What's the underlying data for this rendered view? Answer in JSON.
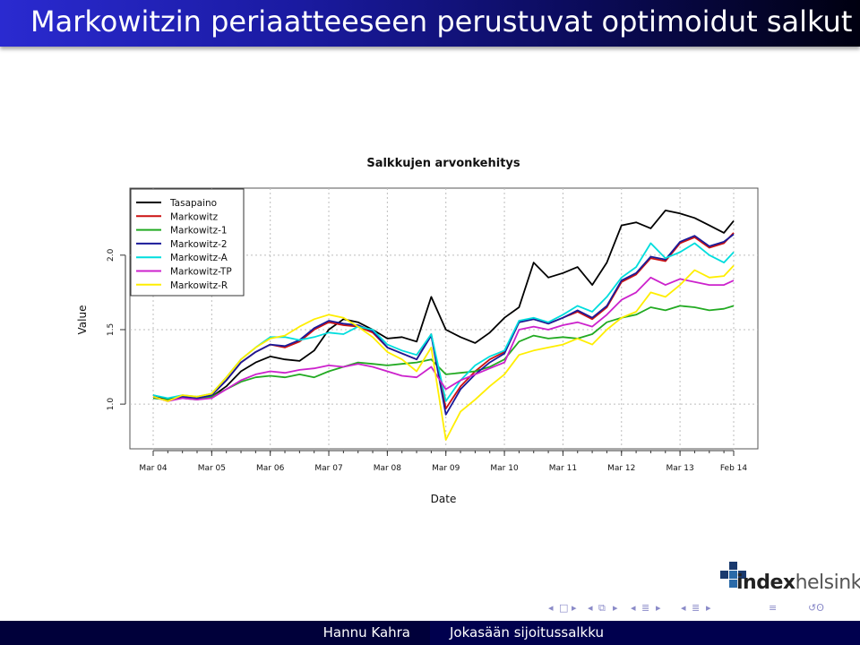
{
  "slide": {
    "title": "Markowitzin periaatteeseen perustuvat optimoidut salkut"
  },
  "footer": {
    "author": "Hannu Kahra",
    "talk_title": "Jokasään sijoitussalkku"
  },
  "logo": {
    "brand_bold": "index",
    "brand_rest": "helsinki"
  },
  "nav": {
    "icons": [
      "nav-left-arrow-icon",
      "frame-icon",
      "nav-right-arrow-icon",
      "nav-left-arrow-icon",
      "subsection-icon",
      "nav-right-arrow-icon",
      "nav-left-arrow-icon",
      "section-icon",
      "nav-right-arrow-icon",
      "nav-left-arrow-icon",
      "presentation-icon",
      "nav-right-arrow-icon",
      "align-icon",
      "search-icon"
    ]
  },
  "chart_data": {
    "type": "line",
    "title": "Salkkujen arvonkehitys",
    "xlabel": "Date",
    "ylabel": "Value",
    "x_tick_labels": [
      "Mar 04",
      "Mar 05",
      "Mar 06",
      "Mar 07",
      "Mar 08",
      "Mar 09",
      "Mar 10",
      "Mar 11",
      "Mar 12",
      "Mar 13",
      "Feb 14"
    ],
    "y_tick_labels": [
      "1.0",
      "1.5",
      "2.0"
    ],
    "x": [
      "2004-03",
      "2004-06",
      "2004-09",
      "2004-12",
      "2005-03",
      "2005-06",
      "2005-09",
      "2005-12",
      "2006-03",
      "2006-06",
      "2006-09",
      "2006-12",
      "2007-03",
      "2007-06",
      "2007-09",
      "2007-12",
      "2008-03",
      "2008-06",
      "2008-09",
      "2008-12",
      "2009-03",
      "2009-06",
      "2009-09",
      "2009-12",
      "2010-03",
      "2010-06",
      "2010-09",
      "2010-12",
      "2011-03",
      "2011-06",
      "2011-09",
      "2011-12",
      "2012-03",
      "2012-06",
      "2012-09",
      "2012-12",
      "2013-03",
      "2013-06",
      "2013-09",
      "2013-12",
      "2014-02"
    ],
    "xlim": [
      "2004-03",
      "2014-02"
    ],
    "ylim": [
      0.7,
      2.45
    ],
    "grid": true,
    "legend_position": "top-left",
    "series": [
      {
        "name": "Tasapaino",
        "color": "#000000",
        "values": [
          1.06,
          1.03,
          1.05,
          1.04,
          1.05,
          1.12,
          1.22,
          1.28,
          1.32,
          1.3,
          1.29,
          1.36,
          1.5,
          1.57,
          1.55,
          1.5,
          1.44,
          1.45,
          1.42,
          1.72,
          1.5,
          1.45,
          1.41,
          1.48,
          1.58,
          1.65,
          1.95,
          1.85,
          1.88,
          1.92,
          1.8,
          1.95,
          2.2,
          2.22,
          2.18,
          2.3,
          2.28,
          2.25,
          2.2,
          2.15,
          2.23
        ]
      },
      {
        "name": "Markowitz",
        "color": "#cc1111",
        "values": [
          1.05,
          1.02,
          1.05,
          1.04,
          1.06,
          1.16,
          1.28,
          1.35,
          1.4,
          1.38,
          1.42,
          1.5,
          1.55,
          1.53,
          1.52,
          1.48,
          1.38,
          1.34,
          1.3,
          1.47,
          0.97,
          1.12,
          1.22,
          1.3,
          1.35,
          1.55,
          1.57,
          1.54,
          1.58,
          1.62,
          1.57,
          1.65,
          1.82,
          1.87,
          1.98,
          1.96,
          2.08,
          2.12,
          2.05,
          2.08,
          2.15
        ]
      },
      {
        "name": "Markowitz-1",
        "color": "#22aa22",
        "values": [
          1.04,
          1.03,
          1.04,
          1.03,
          1.05,
          1.1,
          1.15,
          1.18,
          1.19,
          1.18,
          1.2,
          1.18,
          1.22,
          1.25,
          1.28,
          1.27,
          1.26,
          1.27,
          1.28,
          1.3,
          1.2,
          1.21,
          1.22,
          1.25,
          1.3,
          1.42,
          1.46,
          1.44,
          1.45,
          1.44,
          1.47,
          1.55,
          1.58,
          1.6,
          1.65,
          1.63,
          1.66,
          1.65,
          1.63,
          1.64,
          1.66
        ]
      },
      {
        "name": "Markowitz-2",
        "color": "#1a1a99",
        "values": [
          1.05,
          1.02,
          1.05,
          1.04,
          1.06,
          1.16,
          1.28,
          1.35,
          1.4,
          1.39,
          1.43,
          1.51,
          1.56,
          1.54,
          1.53,
          1.49,
          1.38,
          1.34,
          1.3,
          1.46,
          0.93,
          1.1,
          1.2,
          1.28,
          1.34,
          1.55,
          1.57,
          1.54,
          1.58,
          1.63,
          1.58,
          1.66,
          1.83,
          1.88,
          1.99,
          1.97,
          2.09,
          2.13,
          2.06,
          2.09,
          2.14
        ]
      },
      {
        "name": "Markowitz-A",
        "color": "#00dddd",
        "values": [
          1.06,
          1.04,
          1.06,
          1.05,
          1.07,
          1.18,
          1.3,
          1.38,
          1.45,
          1.45,
          1.43,
          1.45,
          1.48,
          1.47,
          1.52,
          1.5,
          1.4,
          1.36,
          1.33,
          1.47,
          1.02,
          1.16,
          1.26,
          1.32,
          1.36,
          1.56,
          1.58,
          1.55,
          1.6,
          1.66,
          1.62,
          1.72,
          1.85,
          1.92,
          2.08,
          1.98,
          2.02,
          2.08,
          2.0,
          1.95,
          2.02
        ]
      },
      {
        "name": "Markowitz-TP",
        "color": "#cc22cc",
        "values": [
          1.05,
          1.02,
          1.04,
          1.03,
          1.04,
          1.1,
          1.16,
          1.2,
          1.22,
          1.21,
          1.23,
          1.24,
          1.26,
          1.25,
          1.27,
          1.25,
          1.22,
          1.19,
          1.18,
          1.25,
          1.1,
          1.16,
          1.2,
          1.24,
          1.28,
          1.5,
          1.52,
          1.5,
          1.53,
          1.55,
          1.52,
          1.6,
          1.7,
          1.75,
          1.85,
          1.8,
          1.84,
          1.82,
          1.8,
          1.8,
          1.83
        ]
      },
      {
        "name": "Markowitz-R",
        "color": "#ffee00",
        "values": [
          1.05,
          1.02,
          1.06,
          1.05,
          1.07,
          1.18,
          1.3,
          1.38,
          1.44,
          1.46,
          1.52,
          1.57,
          1.6,
          1.58,
          1.52,
          1.45,
          1.35,
          1.3,
          1.22,
          1.38,
          0.76,
          0.95,
          1.03,
          1.12,
          1.2,
          1.33,
          1.36,
          1.38,
          1.4,
          1.44,
          1.4,
          1.5,
          1.58,
          1.62,
          1.75,
          1.72,
          1.8,
          1.9,
          1.85,
          1.86,
          1.93
        ]
      }
    ]
  }
}
